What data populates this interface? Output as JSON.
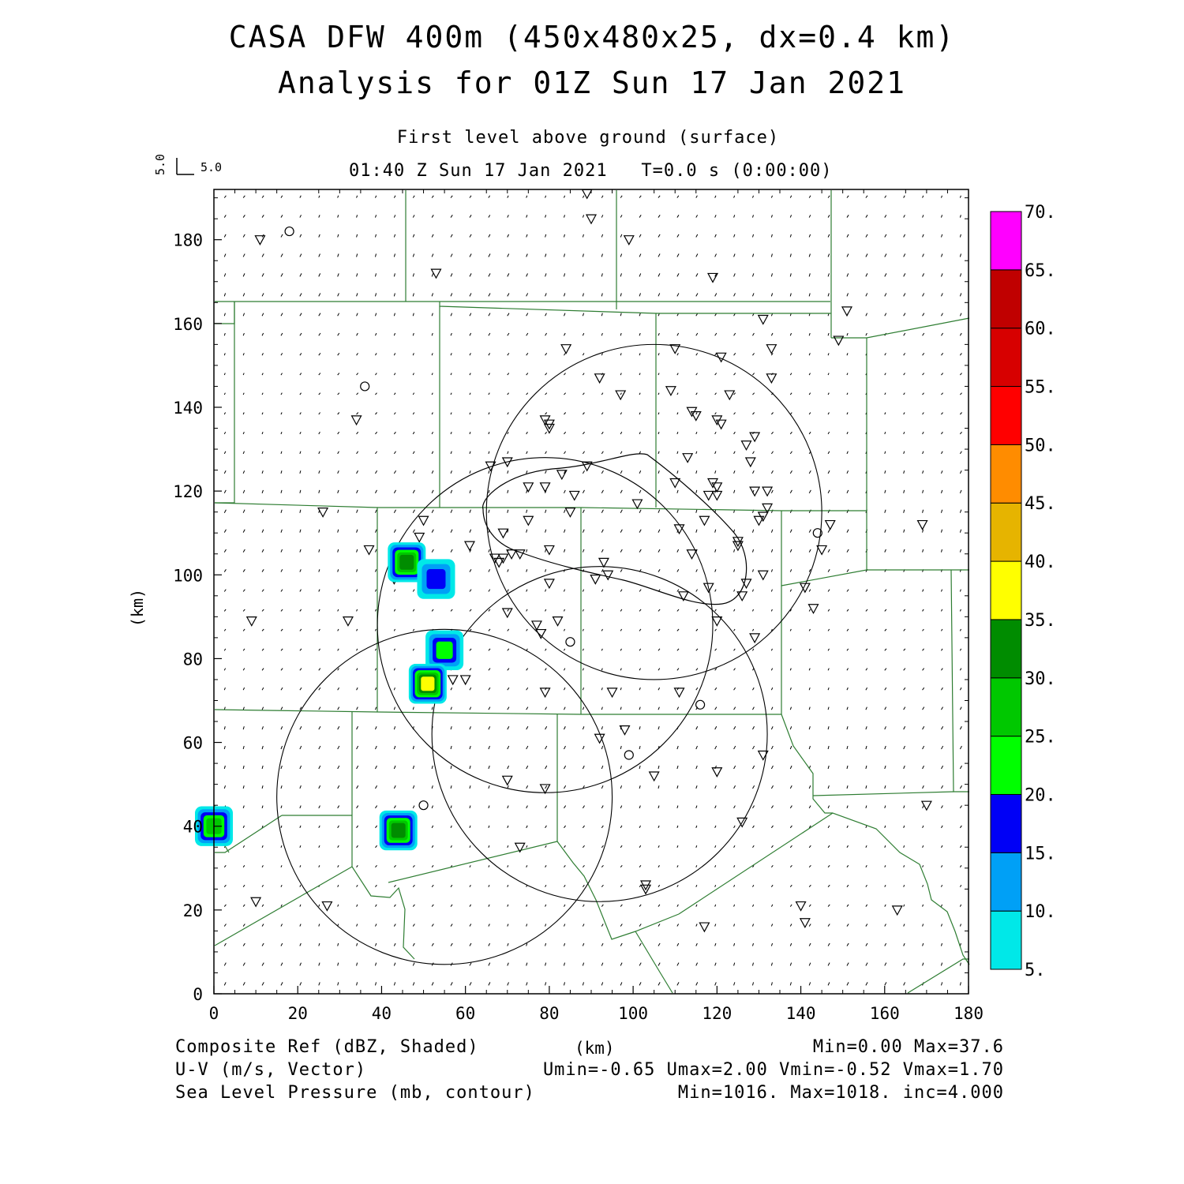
{
  "header": {
    "title_line1": "CASA DFW 400m (450x480x25, dx=0.4 km)",
    "title_line2": "Analysis for 01Z Sun 17 Jan 2021",
    "level": "First level above ground (surface)",
    "valid_time": "01:40 Z Sun 17 Jan 2021   T=0.0 s (0:00:00)",
    "vector_scale_u": "5.0",
    "vector_scale_v": "5.0"
  },
  "axes": {
    "x_label": "(km)",
    "y_label": "(km)",
    "x_ticks": [
      "0",
      "20",
      "40",
      "60",
      "80",
      "100",
      "120",
      "140",
      "160",
      "180"
    ],
    "y_ticks": [
      "0",
      "20",
      "40",
      "60",
      "80",
      "100",
      "120",
      "140",
      "160",
      "180"
    ],
    "x_range": [
      0,
      180
    ],
    "y_range": [
      0,
      192
    ]
  },
  "colorbar": {
    "labels": [
      "5.",
      "10.",
      "15.",
      "20.",
      "25.",
      "30.",
      "35.",
      "40.",
      "45.",
      "50.",
      "55.",
      "60.",
      "65.",
      "70."
    ],
    "colors": [
      "#00e8e8",
      "#00a0f6",
      "#0000f6",
      "#00ff00",
      "#00c800",
      "#008c00",
      "#ffff00",
      "#e6b400",
      "#ff8c00",
      "#ff0000",
      "#d70000",
      "#c00000",
      "#ff00ff"
    ]
  },
  "footer": {
    "left": [
      "Composite Ref (dBZ, Shaded)",
      "U-V (m/s, Vector)",
      "Sea Level Pressure (mb, contour)"
    ],
    "right": [
      "Min=0.00 Max=37.6",
      "Umin=-0.65 Umax=2.00 Vmin=-0.52 Vmax=1.70",
      "Min=1016. Max=1018. inc=4.000"
    ]
  },
  "map": {
    "county_line_color": "#2e7d32",
    "contour_color": "#000000",
    "radar_range_rings_km": [
      {
        "cx": 105,
        "cy": 115,
        "r": 40
      },
      {
        "cx": 79,
        "cy": 88,
        "r": 40
      },
      {
        "cx": 92,
        "cy": 62,
        "r": 40
      },
      {
        "cx": 55,
        "cy": 47,
        "r": 40
      }
    ],
    "reflectivity_cells": [
      {
        "x": 46,
        "y": 103,
        "dbz": 30
      },
      {
        "x": 53,
        "y": 99,
        "dbz": 15
      },
      {
        "x": 55,
        "y": 82,
        "dbz": 20
      },
      {
        "x": 51,
        "y": 74,
        "dbz": 37
      },
      {
        "x": 44,
        "y": 39,
        "dbz": 30
      },
      {
        "x": 0,
        "y": 40,
        "dbz": 25
      }
    ],
    "stations_triangle": [
      [
        11,
        180
      ],
      [
        53,
        172
      ],
      [
        89,
        191
      ],
      [
        90,
        185
      ],
      [
        99,
        180
      ],
      [
        119,
        171
      ],
      [
        131,
        161
      ],
      [
        151,
        163
      ],
      [
        149,
        156
      ],
      [
        133,
        154
      ],
      [
        110,
        154
      ],
      [
        84,
        154
      ],
      [
        121,
        152
      ],
      [
        92,
        147
      ],
      [
        133,
        147
      ],
      [
        97,
        143
      ],
      [
        109,
        144
      ],
      [
        123,
        143
      ],
      [
        114,
        139
      ],
      [
        115,
        138
      ],
      [
        79,
        137
      ],
      [
        80,
        136
      ],
      [
        80,
        135
      ],
      [
        120,
        137
      ],
      [
        121,
        136
      ],
      [
        34,
        137
      ],
      [
        129,
        133
      ],
      [
        127,
        131
      ],
      [
        113,
        128
      ],
      [
        128,
        127
      ],
      [
        70,
        127
      ],
      [
        66,
        126
      ],
      [
        89,
        126
      ],
      [
        83,
        124
      ],
      [
        119,
        122
      ],
      [
        120,
        121
      ],
      [
        110,
        122
      ],
      [
        75,
        121
      ],
      [
        79,
        121
      ],
      [
        118,
        119
      ],
      [
        120,
        119
      ],
      [
        129,
        120
      ],
      [
        132,
        120
      ],
      [
        86,
        119
      ],
      [
        132,
        116
      ],
      [
        101,
        117
      ],
      [
        131,
        114
      ],
      [
        130,
        113
      ],
      [
        26,
        115
      ],
      [
        85,
        115
      ],
      [
        50,
        113
      ],
      [
        69,
        110
      ],
      [
        75,
        113
      ],
      [
        117,
        113
      ],
      [
        147,
        112
      ],
      [
        169,
        112
      ],
      [
        111,
        111
      ],
      [
        49,
        109
      ],
      [
        125,
        108
      ],
      [
        125,
        107
      ],
      [
        61,
        107
      ],
      [
        80,
        106
      ],
      [
        37,
        106
      ],
      [
        114,
        105
      ],
      [
        71,
        105
      ],
      [
        145,
        106
      ],
      [
        67,
        104
      ],
      [
        69,
        104
      ],
      [
        73,
        105
      ],
      [
        68,
        103
      ],
      [
        43,
        99
      ],
      [
        93,
        103
      ],
      [
        131,
        100
      ],
      [
        94,
        100
      ],
      [
        91,
        99
      ],
      [
        80,
        98
      ],
      [
        118,
        97
      ],
      [
        127,
        98
      ],
      [
        141,
        97
      ],
      [
        112,
        95
      ],
      [
        126,
        95
      ],
      [
        143,
        92
      ],
      [
        70,
        91
      ],
      [
        32,
        89
      ],
      [
        9,
        89
      ],
      [
        77,
        88
      ],
      [
        82,
        89
      ],
      [
        120,
        89
      ],
      [
        78,
        86
      ],
      [
        129,
        85
      ],
      [
        52,
        84
      ],
      [
        56,
        83
      ],
      [
        60,
        75
      ],
      [
        57,
        75
      ],
      [
        79,
        72
      ],
      [
        95,
        72
      ],
      [
        111,
        72
      ],
      [
        98,
        63
      ],
      [
        92,
        61
      ],
      [
        131,
        57
      ],
      [
        120,
        53
      ],
      [
        105,
        52
      ],
      [
        70,
        51
      ],
      [
        79,
        49
      ],
      [
        126,
        41
      ],
      [
        170,
        45
      ],
      [
        73,
        35
      ],
      [
        103,
        26
      ],
      [
        103,
        25
      ],
      [
        10,
        22
      ],
      [
        27,
        21
      ],
      [
        140,
        21
      ],
      [
        163,
        20
      ],
      [
        141,
        17
      ],
      [
        117,
        16
      ]
    ],
    "stations_circle": [
      [
        18,
        182
      ],
      [
        36,
        145
      ],
      [
        144,
        110
      ],
      [
        85,
        84
      ],
      [
        116,
        69
      ],
      [
        99,
        57
      ],
      [
        50,
        45
      ]
    ]
  }
}
